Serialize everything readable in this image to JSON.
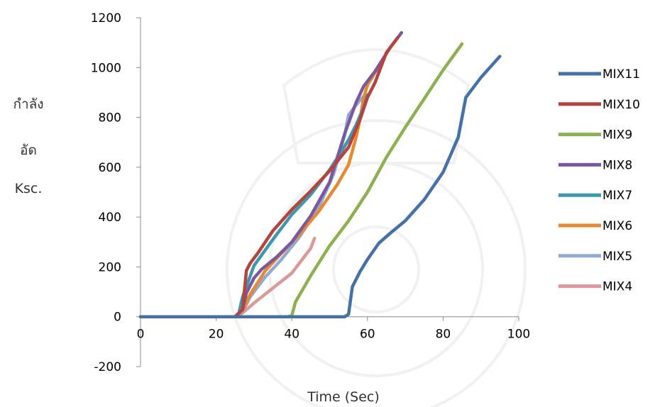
{
  "chart_data": {
    "type": "line",
    "title": "",
    "xlabel": "Time (Sec)",
    "ylabel_lines": [
      "กำลัง",
      "อัด",
      "Ksc."
    ],
    "xlim": [
      0,
      100
    ],
    "ylim": [
      -200,
      1200
    ],
    "x_ticks": [
      0,
      20,
      40,
      60,
      80,
      100
    ],
    "y_ticks": [
      -200,
      0,
      200,
      400,
      600,
      800,
      1000,
      1200
    ],
    "grid": false,
    "legend_position": "right",
    "series": [
      {
        "name": "MIX11",
        "color": "#4472A8",
        "points": [
          [
            0,
            0
          ],
          [
            54,
            0
          ],
          [
            55,
            10
          ],
          [
            56,
            120
          ],
          [
            58,
            180
          ],
          [
            60,
            230
          ],
          [
            63,
            295
          ],
          [
            66,
            335
          ],
          [
            70,
            385
          ],
          [
            75,
            470
          ],
          [
            80,
            580
          ],
          [
            84,
            720
          ],
          [
            86,
            880
          ],
          [
            90,
            960
          ],
          [
            95,
            1045
          ]
        ]
      },
      {
        "name": "MIX10",
        "color": "#B5433F",
        "points": [
          [
            0,
            0
          ],
          [
            25,
            0
          ],
          [
            27,
            30
          ],
          [
            28,
            185
          ],
          [
            29,
            215
          ],
          [
            31,
            255
          ],
          [
            35,
            345
          ],
          [
            40,
            430
          ],
          [
            45,
            505
          ],
          [
            50,
            585
          ],
          [
            55,
            680
          ],
          [
            58,
            790
          ],
          [
            60,
            880
          ],
          [
            62,
            940
          ],
          [
            65,
            1060
          ],
          [
            68,
            1120
          ]
        ]
      },
      {
        "name": "MIX9",
        "color": "#8DB050",
        "points": [
          [
            0,
            0
          ],
          [
            39,
            0
          ],
          [
            40,
            5
          ],
          [
            41,
            60
          ],
          [
            45,
            165
          ],
          [
            50,
            285
          ],
          [
            55,
            385
          ],
          [
            60,
            500
          ],
          [
            65,
            640
          ],
          [
            70,
            760
          ],
          [
            75,
            875
          ],
          [
            80,
            990
          ],
          [
            85,
            1095
          ]
        ]
      },
      {
        "name": "MIX8",
        "color": "#7A5A9E",
        "points": [
          [
            0,
            0
          ],
          [
            25,
            0
          ],
          [
            27,
            30
          ],
          [
            28,
            95
          ],
          [
            30,
            155
          ],
          [
            32,
            190
          ],
          [
            36,
            240
          ],
          [
            40,
            300
          ],
          [
            45,
            405
          ],
          [
            50,
            540
          ],
          [
            54,
            735
          ],
          [
            57,
            860
          ],
          [
            59,
            925
          ],
          [
            62,
            985
          ],
          [
            66,
            1080
          ],
          [
            69,
            1140
          ]
        ]
      },
      {
        "name": "MIX7",
        "color": "#3D98AF",
        "points": [
          [
            0,
            0
          ],
          [
            25,
            0
          ],
          [
            26,
            15
          ],
          [
            27,
            80
          ],
          [
            30,
            205
          ],
          [
            35,
            310
          ],
          [
            40,
            410
          ],
          [
            45,
            490
          ],
          [
            50,
            590
          ],
          [
            53,
            660
          ],
          [
            55,
            710
          ],
          [
            57,
            770
          ],
          [
            59,
            840
          ],
          [
            60,
            890
          ]
        ]
      },
      {
        "name": "MIX6",
        "color": "#E8882F",
        "points": [
          [
            0,
            0
          ],
          [
            25,
            0
          ],
          [
            27,
            25
          ],
          [
            29,
            90
          ],
          [
            33,
            185
          ],
          [
            37,
            250
          ],
          [
            42,
            330
          ],
          [
            47,
            420
          ],
          [
            52,
            530
          ],
          [
            55,
            610
          ],
          [
            57,
            720
          ],
          [
            58,
            790
          ],
          [
            59,
            880
          ],
          [
            60,
            930
          ],
          [
            62,
            980
          ],
          [
            64,
            1020
          ]
        ]
      },
      {
        "name": "MIX5",
        "color": "#92A9D5",
        "points": [
          [
            0,
            0
          ],
          [
            25,
            0
          ],
          [
            27,
            20
          ],
          [
            29,
            80
          ],
          [
            33,
            160
          ],
          [
            37,
            225
          ],
          [
            42,
            320
          ],
          [
            47,
            435
          ],
          [
            51,
            570
          ],
          [
            54,
            730
          ],
          [
            55,
            810
          ],
          [
            57,
            850
          ],
          [
            59,
            885
          ]
        ]
      },
      {
        "name": "MIX4",
        "color": "#D99A98",
        "points": [
          [
            0,
            0
          ],
          [
            25,
            0
          ],
          [
            27,
            15
          ],
          [
            30,
            55
          ],
          [
            35,
            115
          ],
          [
            40,
            175
          ],
          [
            43,
            235
          ],
          [
            45,
            275
          ],
          [
            46,
            315
          ]
        ]
      }
    ]
  }
}
